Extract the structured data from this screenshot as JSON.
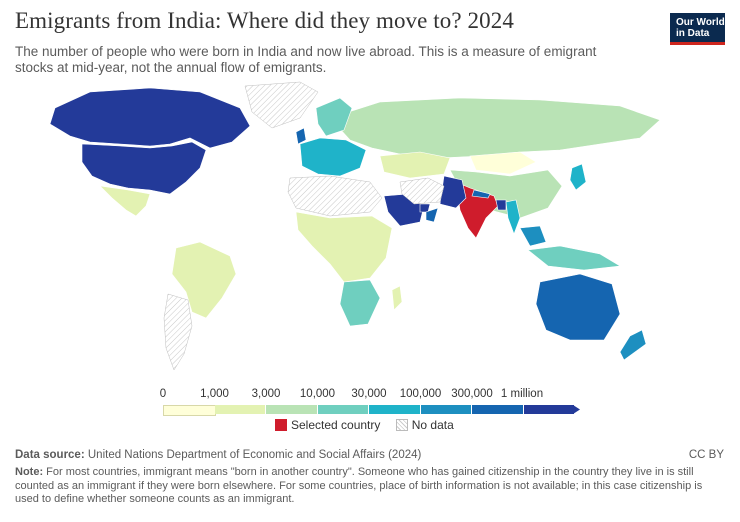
{
  "header": {
    "title": "Emigrants from India: Where did they move to? 2024",
    "subtitle": "The number of people who were born in India and now live abroad. This is a measure of emigrant stocks at mid-year, not the annual flow of emigrants.",
    "logo_line1": "Our World",
    "logo_line2": "in Data"
  },
  "legend": {
    "ticks": [
      "0",
      "1,000",
      "3,000",
      "10,000",
      "30,000",
      "100,000",
      "300,000",
      "1 million"
    ],
    "colors": [
      "#ffffd9",
      "#e3f2b2",
      "#b9e3b5",
      "#6fcfbf",
      "#1fb3c9",
      "#1d8fc0",
      "#1565b0",
      "#233a99"
    ],
    "selected_color": "#cf1c2c",
    "selected_label": "Selected country",
    "nodata_label": "No data"
  },
  "map": {
    "regions": [
      {
        "name": "United States",
        "bin": 7
      },
      {
        "name": "Canada",
        "bin": 7
      },
      {
        "name": "Mexico",
        "bin": 1
      },
      {
        "name": "Greenland",
        "bin": -1
      },
      {
        "name": "Brazil",
        "bin": 1
      },
      {
        "name": "Argentina",
        "bin": -1
      },
      {
        "name": "Russia",
        "bin": 2
      },
      {
        "name": "Kazakhstan",
        "bin": 1
      },
      {
        "name": "China",
        "bin": 2
      },
      {
        "name": "Mongolia",
        "bin": 0
      },
      {
        "name": "India",
        "bin": "selected"
      },
      {
        "name": "Pakistan",
        "bin": 7
      },
      {
        "name": "Saudi Arabia",
        "bin": 7
      },
      {
        "name": "United Arab Emirates",
        "bin": 7
      },
      {
        "name": "Oman",
        "bin": 6
      },
      {
        "name": "Iran",
        "bin": -1
      },
      {
        "name": "Bangladesh",
        "bin": 7
      },
      {
        "name": "Nepal",
        "bin": 6
      },
      {
        "name": "Myanmar",
        "bin": 4
      },
      {
        "name": "Malaysia",
        "bin": 5
      },
      {
        "name": "Indonesia",
        "bin": 3
      },
      {
        "name": "Japan",
        "bin": 4
      },
      {
        "name": "Australia",
        "bin": 6
      },
      {
        "name": "New Zealand",
        "bin": 5
      },
      {
        "name": "United Kingdom",
        "bin": 6
      },
      {
        "name": "Europe",
        "bin": 4
      },
      {
        "name": "Scandinavia",
        "bin": 3
      },
      {
        "name": "North Africa",
        "bin": -1
      },
      {
        "name": "Sub-Saharan Africa",
        "bin": 1
      },
      {
        "name": "Southern Africa",
        "bin": 3
      },
      {
        "name": "Madagascar",
        "bin": 1
      }
    ]
  },
  "footer": {
    "source_label": "Data source:",
    "source_text": "United Nations Department of Economic and Social Affairs (2024)",
    "license": "CC BY",
    "note_label": "Note:",
    "note_text": "For most countries, immigrant means \"born in another country\". Someone who has gained citizenship in the country they live in is still counted as an immigrant if they were born elsewhere. For some countries, place of birth information is not available; in this case citizenship is used to define whether someone counts as an immigrant."
  }
}
